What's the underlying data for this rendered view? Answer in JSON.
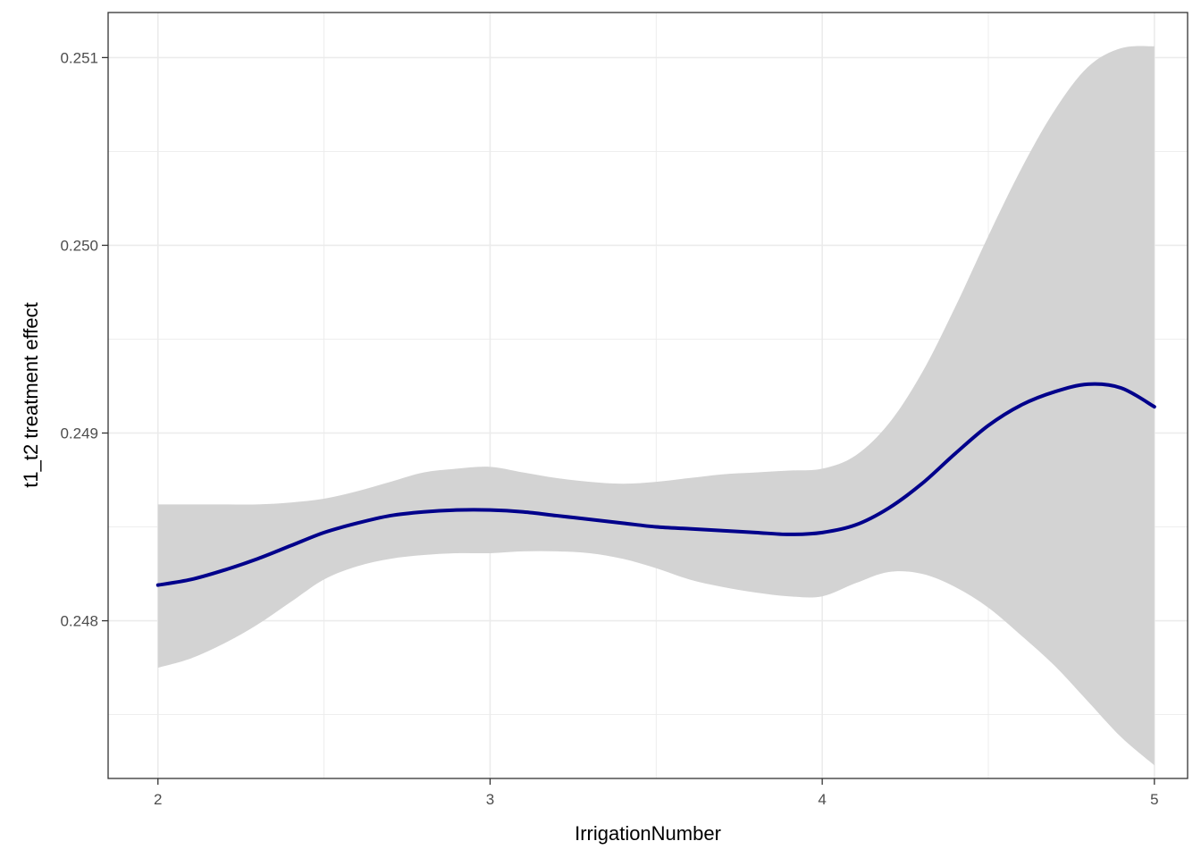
{
  "chart_data": {
    "type": "line",
    "title": "",
    "xlabel": "IrrigationNumber",
    "ylabel": "t1_t2 treatment effect",
    "xlim": [
      1.85,
      5.1
    ],
    "ylim": [
      0.24716,
      0.25124
    ],
    "x_ticks": [
      2,
      3,
      4,
      5
    ],
    "x_tick_labels": [
      "2",
      "3",
      "4",
      "5"
    ],
    "x_minor_ticks": [
      2.5,
      3.5,
      4.5
    ],
    "y_ticks": [
      0.248,
      0.249,
      0.25,
      0.251
    ],
    "y_tick_labels": [
      "0.248",
      "0.249",
      "0.250",
      "0.251"
    ],
    "y_minor_ticks": [
      0.2475,
      0.2485,
      0.2495,
      0.2505
    ],
    "grid": true,
    "legend": "none",
    "colors": {
      "line": "#00008B",
      "ribbon": "#D3D3D3",
      "grid": "#EBEBEB",
      "border": "#333333"
    },
    "series": [
      {
        "x": [
          2.0,
          2.1,
          2.2,
          2.3,
          2.4,
          2.5,
          2.6,
          2.7,
          2.8,
          2.9,
          3.0,
          3.1,
          3.2,
          3.3,
          3.4,
          3.5,
          3.6,
          3.7,
          3.8,
          3.9,
          4.0,
          4.1,
          4.2,
          4.3,
          4.4,
          4.5,
          4.6,
          4.7,
          4.8,
          4.9,
          5.0
        ],
        "y": [
          0.24819,
          0.24822,
          0.24827,
          0.24833,
          0.2484,
          0.24847,
          0.24852,
          0.24856,
          0.24858,
          0.24859,
          0.24859,
          0.24858,
          0.24856,
          0.24854,
          0.24852,
          0.2485,
          0.24849,
          0.24848,
          0.24847,
          0.24846,
          0.24847,
          0.24851,
          0.2486,
          0.24873,
          0.24889,
          0.24904,
          0.24915,
          0.24922,
          0.24926,
          0.24924,
          0.24914
        ],
        "lower": [
          0.24775,
          0.2478,
          0.24788,
          0.24798,
          0.2481,
          0.24822,
          0.24829,
          0.24833,
          0.24835,
          0.24836,
          0.24836,
          0.24837,
          0.24837,
          0.24836,
          0.24833,
          0.24828,
          0.24822,
          0.24818,
          0.24815,
          0.24813,
          0.24813,
          0.2482,
          0.24826,
          0.24825,
          0.24818,
          0.24807,
          0.24792,
          0.24776,
          0.24757,
          0.24738,
          0.24723
        ],
        "upper": [
          0.24862,
          0.24862,
          0.24862,
          0.24862,
          0.24863,
          0.24865,
          0.24869,
          0.24874,
          0.24879,
          0.24881,
          0.24882,
          0.24879,
          0.24876,
          0.24874,
          0.24873,
          0.24874,
          0.24876,
          0.24878,
          0.24879,
          0.2488,
          0.24881,
          0.24888,
          0.24905,
          0.24932,
          0.24967,
          0.25005,
          0.25041,
          0.25072,
          0.25095,
          0.25105,
          0.25106
        ]
      }
    ]
  }
}
